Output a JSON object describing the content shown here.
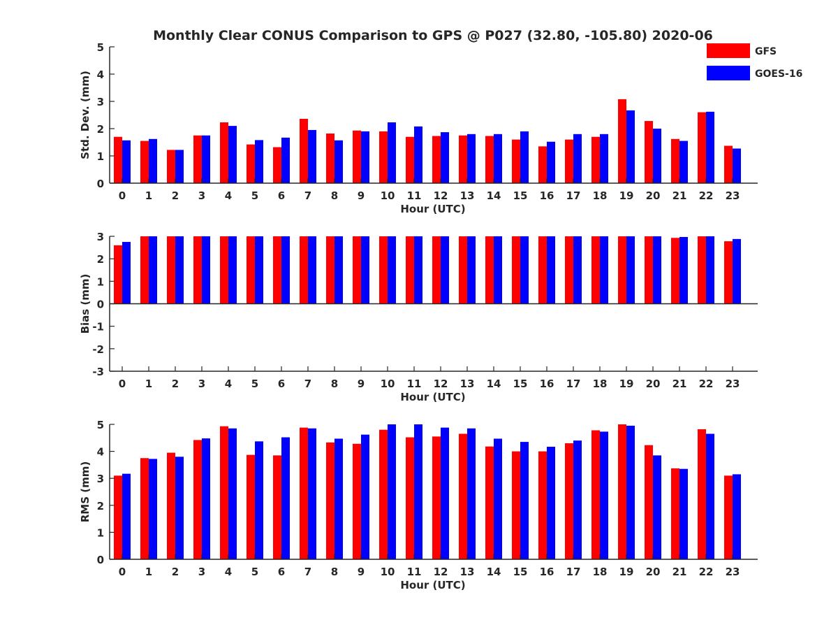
{
  "title": "Monthly Clear CONUS Comparison to GPS @ P027 (32.80, -105.80) 2020-06",
  "legend": {
    "placement": "top-right",
    "entries": [
      {
        "name": "GFS",
        "color": "#ff0000"
      },
      {
        "name": "GOES-16",
        "color": "#0000ff"
      }
    ]
  },
  "chart_data": [
    {
      "type": "bar",
      "xlabel": "Hour (UTC)",
      "ylabel": "Std. Dev. (mm)",
      "ylim": [
        0,
        5
      ],
      "yticks": [
        0,
        1,
        2,
        3,
        4,
        5
      ],
      "categories": [
        "0",
        "1",
        "2",
        "3",
        "4",
        "5",
        "6",
        "7",
        "8",
        "9",
        "10",
        "11",
        "12",
        "13",
        "14",
        "15",
        "16",
        "17",
        "18",
        "19",
        "20",
        "21",
        "22",
        "23"
      ],
      "series": [
        {
          "name": "GFS",
          "color": "#ff0000",
          "values": [
            1.7,
            1.55,
            1.22,
            1.75,
            2.23,
            1.42,
            1.32,
            2.36,
            1.82,
            1.93,
            1.9,
            1.7,
            1.73,
            1.75,
            1.73,
            1.6,
            1.35,
            1.6,
            1.7,
            3.08,
            2.28,
            1.62,
            2.6,
            1.37
          ]
        },
        {
          "name": "GOES-16",
          "color": "#0000ff",
          "values": [
            1.57,
            1.62,
            1.22,
            1.75,
            2.1,
            1.58,
            1.67,
            1.95,
            1.57,
            1.9,
            2.23,
            2.08,
            1.87,
            1.8,
            1.8,
            1.9,
            1.52,
            1.8,
            1.8,
            2.67,
            2.0,
            1.55,
            2.62,
            1.27
          ]
        }
      ]
    },
    {
      "type": "bar",
      "xlabel": "Hour (UTC)",
      "ylabel": "Bias (mm)",
      "ylim": [
        -3,
        3
      ],
      "yticks": [
        -3,
        -2,
        -1,
        0,
        1,
        2,
        3
      ],
      "categories": [
        "0",
        "1",
        "2",
        "3",
        "4",
        "5",
        "6",
        "7",
        "8",
        "9",
        "10",
        "11",
        "12",
        "13",
        "14",
        "15",
        "16",
        "17",
        "18",
        "19",
        "20",
        "21",
        "22",
        "23"
      ],
      "series": [
        {
          "name": "GFS",
          "color": "#ff0000",
          "values": [
            2.6,
            3,
            3,
            3,
            3,
            3,
            3,
            3,
            3,
            3,
            3,
            3,
            3,
            3,
            3,
            3,
            3,
            3,
            3,
            3,
            3,
            2.93,
            3,
            2.78
          ]
        },
        {
          "name": "GOES-16",
          "color": "#0000ff",
          "values": [
            2.75,
            3,
            3,
            3,
            3,
            3,
            3,
            3,
            3,
            3,
            3,
            3,
            3,
            3,
            3,
            3,
            3,
            3,
            3,
            3,
            3,
            2.97,
            3,
            2.88
          ]
        }
      ]
    },
    {
      "type": "bar",
      "xlabel": "Hour (UTC)",
      "ylabel": "RMS (mm)",
      "ylim": [
        0,
        5
      ],
      "yticks": [
        0,
        1,
        2,
        3,
        4,
        5
      ],
      "categories": [
        "0",
        "1",
        "2",
        "3",
        "4",
        "5",
        "6",
        "7",
        "8",
        "9",
        "10",
        "11",
        "12",
        "13",
        "14",
        "15",
        "16",
        "17",
        "18",
        "19",
        "20",
        "21",
        "22",
        "23"
      ],
      "series": [
        {
          "name": "GFS",
          "color": "#ff0000",
          "values": [
            3.1,
            3.75,
            3.95,
            4.42,
            4.93,
            3.87,
            3.85,
            4.88,
            4.33,
            4.28,
            4.8,
            4.52,
            4.55,
            4.65,
            4.18,
            4.0,
            4.0,
            4.3,
            4.78,
            5.0,
            4.23,
            3.37,
            4.82,
            3.1
          ]
        },
        {
          "name": "GOES-16",
          "color": "#0000ff",
          "values": [
            3.17,
            3.72,
            3.8,
            4.48,
            4.85,
            4.37,
            4.52,
            4.85,
            4.47,
            4.62,
            5.0,
            5.0,
            4.88,
            4.85,
            4.47,
            4.35,
            4.17,
            4.4,
            4.73,
            4.95,
            3.85,
            3.35,
            4.65,
            3.15
          ]
        }
      ]
    }
  ]
}
